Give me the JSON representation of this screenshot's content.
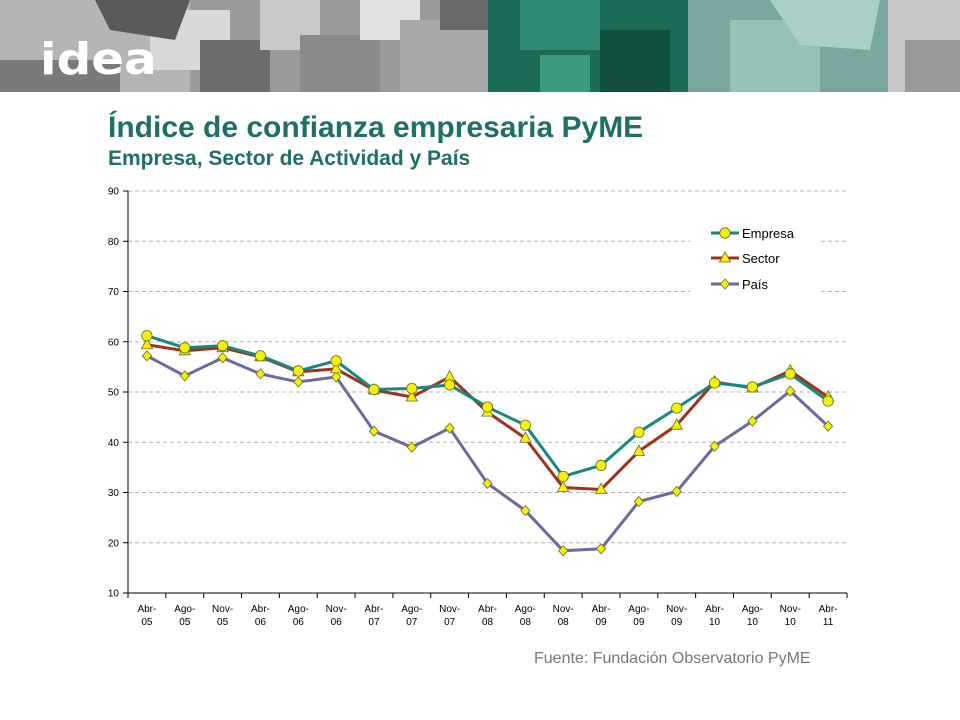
{
  "header": {
    "logo": "idea",
    "title": "Índice de confianza empresaria PyME",
    "subtitle": "Empresa, Sector de Actividad y País"
  },
  "footer": {
    "source": "Fuente: Fundación Observatorio PyME"
  },
  "colors": {
    "accent": "#1f6f67",
    "empresa": "#168880",
    "sector": "#a0321b",
    "pais": "#6b6aa0",
    "marker_fill": "#f4f00a",
    "banner_teal": "#1a6b57"
  },
  "chart_data": {
    "type": "line",
    "title": "Índice de confianza empresaria PyME",
    "subtitle": "Empresa, Sector de Actividad y País",
    "categories": [
      [
        "Abr-",
        "05"
      ],
      [
        "Ago-",
        "05"
      ],
      [
        "Nov-",
        "05"
      ],
      [
        "Abr-",
        "06"
      ],
      [
        "Ago-",
        "06"
      ],
      [
        "Nov-",
        "06"
      ],
      [
        "Abr-",
        "07"
      ],
      [
        "Ago-",
        "07"
      ],
      [
        "Nov-",
        "07"
      ],
      [
        "Abr-",
        "08"
      ],
      [
        "Ago-",
        "08"
      ],
      [
        "Nov-",
        "08"
      ],
      [
        "Abr-",
        "09"
      ],
      [
        "Ago-",
        "09"
      ],
      [
        "Nov-",
        "09"
      ],
      [
        "Abr-",
        "10"
      ],
      [
        "Ago-",
        "10"
      ],
      [
        "Nov-",
        "10"
      ],
      [
        "Abr-",
        "11"
      ]
    ],
    "ylim": [
      10,
      90
    ],
    "yticks": [
      10,
      20,
      30,
      40,
      50,
      60,
      70,
      80,
      90
    ],
    "grid": true,
    "legend_position": "top-right",
    "series": [
      {
        "name": "Empresa",
        "marker": "circle",
        "values": [
          61.2,
          58.8,
          59.2,
          57.2,
          54.2,
          56.2,
          50.5,
          50.7,
          51.4,
          47.0,
          43.4,
          33.2,
          35.4,
          42.0,
          46.8,
          51.8,
          51.0,
          53.6,
          48.2
        ]
      },
      {
        "name": "Sector",
        "marker": "triangle",
        "values": [
          59.4,
          58.2,
          58.8,
          57.0,
          54.0,
          54.6,
          50.4,
          49.0,
          53.0,
          46.0,
          40.8,
          31.0,
          30.6,
          38.2,
          43.4,
          52.0,
          50.8,
          54.2,
          49.0
        ]
      },
      {
        "name": "País",
        "marker": "diamond",
        "values": [
          57.2,
          53.2,
          56.8,
          53.6,
          52.0,
          53.0,
          42.2,
          39.0,
          42.8,
          31.8,
          26.4,
          18.4,
          18.8,
          28.2,
          30.2,
          39.2,
          44.2,
          50.2,
          43.2
        ]
      }
    ]
  }
}
